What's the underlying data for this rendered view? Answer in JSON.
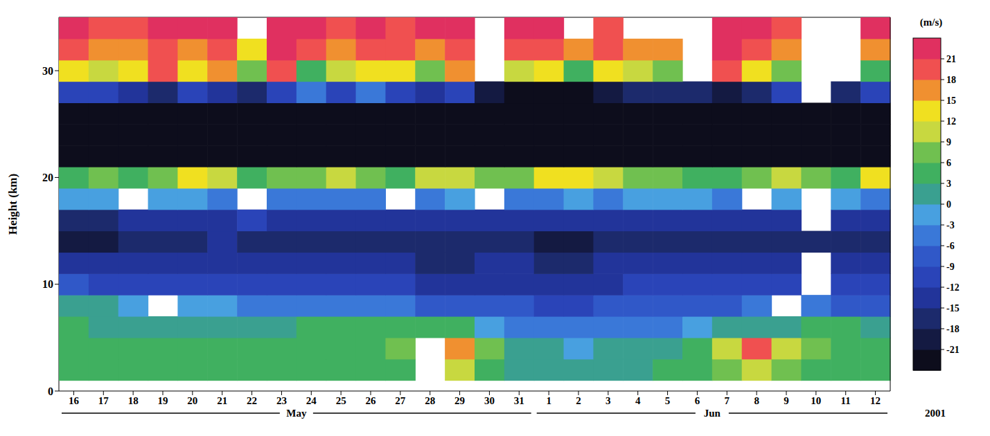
{
  "chart_data": {
    "type": "heatmap",
    "categories": [
      "16",
      "17",
      "18",
      "19",
      "20",
      "21",
      "22",
      "23",
      "24",
      "25",
      "26",
      "27",
      "28",
      "29",
      "30",
      "31",
      "1",
      "2",
      "3",
      "4",
      "5",
      "6",
      "7",
      "8",
      "9",
      "10",
      "11",
      "12"
    ],
    "months": [
      "May",
      "Jun"
    ],
    "year": "2001",
    "ylabel": "Height (km)",
    "ylim": [
      0,
      35
    ],
    "yticks": [
      0,
      10,
      20,
      30
    ],
    "height_bins": [
      1,
      3,
      5,
      7,
      9,
      11,
      13,
      15,
      17,
      19,
      21,
      23,
      25,
      27,
      29,
      31,
      33,
      35
    ],
    "cells": [
      [
        4,
        4,
        4,
        3,
        4,
        4,
        3,
        4,
        5,
        5,
        4,
        5,
        null,
        10,
        4,
        2,
        1,
        2,
        1,
        2,
        4,
        4,
        6,
        10,
        7,
        5,
        5,
        5
      ],
      [
        4,
        3,
        3,
        3,
        4,
        5,
        5,
        5,
        5,
        5,
        5,
        7,
        null,
        16,
        8,
        2,
        0,
        -1,
        0,
        1,
        1,
        3,
        9,
        19,
        11,
        6,
        5,
        4
      ],
      [
        3,
        2,
        1,
        0,
        1,
        2,
        2,
        2,
        3,
        3,
        3,
        3,
        3,
        3,
        -3,
        -5,
        -6,
        -5,
        -5,
        -6,
        -5,
        -3,
        0,
        2,
        2,
        3,
        3,
        2
      ],
      [
        2,
        0,
        -3,
        null,
        -3,
        -3,
        -4,
        -5,
        -5,
        -5,
        -6,
        -6,
        -7,
        -7,
        -8,
        -9,
        -10,
        -10,
        -9,
        -9,
        -8,
        -8,
        -7,
        -5,
        null,
        -6,
        -7,
        -7
      ],
      [
        -9,
        -10,
        -10,
        -11,
        -11,
        -11,
        -12,
        -11,
        -11,
        -12,
        -12,
        -12,
        -13,
        -13,
        -13,
        -14,
        -14,
        -13,
        -13,
        -12,
        -12,
        -12,
        -11,
        -11,
        -10,
        null,
        -11,
        -11
      ],
      [
        -15,
        -15,
        -14,
        -14,
        -13,
        -13,
        -13,
        -14,
        -14,
        -15,
        -15,
        -15,
        -16,
        -16,
        -15,
        -15,
        -16,
        -16,
        -15,
        -15,
        -15,
        -14,
        -14,
        -13,
        -13,
        null,
        -13,
        -14
      ],
      [
        -20,
        -19,
        -17,
        -16,
        -16,
        -15,
        -16,
        -17,
        -17,
        -18,
        -18,
        -18,
        -18,
        -18,
        -17,
        -18,
        -19,
        -19,
        -18,
        -18,
        -18,
        -17,
        -17,
        -16,
        -16,
        -16,
        -16,
        -17
      ],
      [
        -16,
        -16,
        -14,
        -14,
        -13,
        -13,
        -12,
        -13,
        -14,
        -14,
        -14,
        -15,
        -15,
        -14,
        -14,
        -14,
        -15,
        -15,
        -14,
        -14,
        -14,
        -14,
        -14,
        -13,
        -13,
        null,
        -13,
        -13
      ],
      [
        -3,
        -2,
        null,
        -3,
        -2,
        -4,
        null,
        -5,
        -4,
        -5,
        -6,
        null,
        -4,
        -3,
        null,
        -4,
        -4,
        -3,
        -5,
        -3,
        -2,
        -3,
        -4,
        null,
        -2,
        null,
        -2,
        -4
      ],
      [
        4,
        6,
        4,
        8,
        12,
        10,
        5,
        6,
        8,
        9,
        7,
        5,
        11,
        9,
        8,
        7,
        13,
        12,
        10,
        7,
        6,
        5,
        4,
        6,
        10,
        8,
        4,
        12
      ],
      [
        -24,
        -24,
        -23,
        -23,
        -23,
        -24,
        -24,
        -23,
        -22,
        -22,
        -23,
        -24,
        -24,
        -24,
        -22,
        -23,
        -24,
        -24,
        -24,
        -24,
        -24,
        -24,
        -24,
        -24,
        -24,
        -24,
        -24,
        -23
      ],
      [
        -24,
        -24,
        -24,
        -24,
        -23,
        -24,
        -24,
        -24,
        -23,
        -24,
        -24,
        -24,
        -24,
        -24,
        -23,
        -24,
        -24,
        -24,
        -24,
        -24,
        -24,
        -24,
        -24,
        -24,
        -24,
        -24,
        -24,
        -24
      ],
      [
        -24,
        -23,
        -24,
        -24,
        -24,
        -24,
        -24,
        -24,
        -22,
        -24,
        -24,
        -24,
        -24,
        -24,
        -23,
        -24,
        -24,
        -24,
        -24,
        -24,
        -24,
        -24,
        -24,
        -24,
        -24,
        -23,
        -24,
        -24
      ],
      [
        -10,
        -12,
        -14,
        -16,
        -12,
        -15,
        -18,
        -10,
        -6,
        -10,
        -6,
        -12,
        -15,
        -12,
        -20,
        -22,
        -22,
        -22,
        -20,
        -18,
        -16,
        -18,
        -20,
        -16,
        -10,
        null,
        -16,
        -12
      ],
      [
        12,
        9,
        14,
        18,
        12,
        16,
        6,
        20,
        4,
        10,
        12,
        14,
        8,
        16,
        null,
        10,
        12,
        3,
        14,
        9,
        6,
        null,
        18,
        12,
        6,
        null,
        null,
        3
      ],
      [
        20,
        15,
        16,
        20,
        17,
        19,
        14,
        21,
        18,
        17,
        19,
        18,
        16,
        19,
        null,
        20,
        20,
        17,
        19,
        16,
        15,
        null,
        21,
        18,
        16,
        null,
        null,
        15
      ],
      [
        23,
        19,
        20,
        22,
        22,
        22,
        null,
        22,
        21,
        20,
        23,
        20,
        22,
        22,
        null,
        22,
        22,
        null,
        20,
        null,
        null,
        null,
        23,
        23,
        18,
        null,
        null,
        22
      ]
    ],
    "colorbar": {
      "label": "(m/s)",
      "range": [
        -24,
        24
      ],
      "ticks": [
        21,
        18,
        15,
        12,
        9,
        6,
        3,
        0,
        -3,
        -6,
        -9,
        -12,
        -15,
        -18,
        -21
      ],
      "colors": [
        "#0d0d1c",
        "#141a42",
        "#1c2a6c",
        "#22349a",
        "#2a44b8",
        "#3058c8",
        "#3a78d8",
        "#48a0e0",
        "#3aa090",
        "#40b060",
        "#70c050",
        "#c8d840",
        "#f0e020",
        "#f09030",
        "#f05050",
        "#e03060"
      ]
    }
  }
}
